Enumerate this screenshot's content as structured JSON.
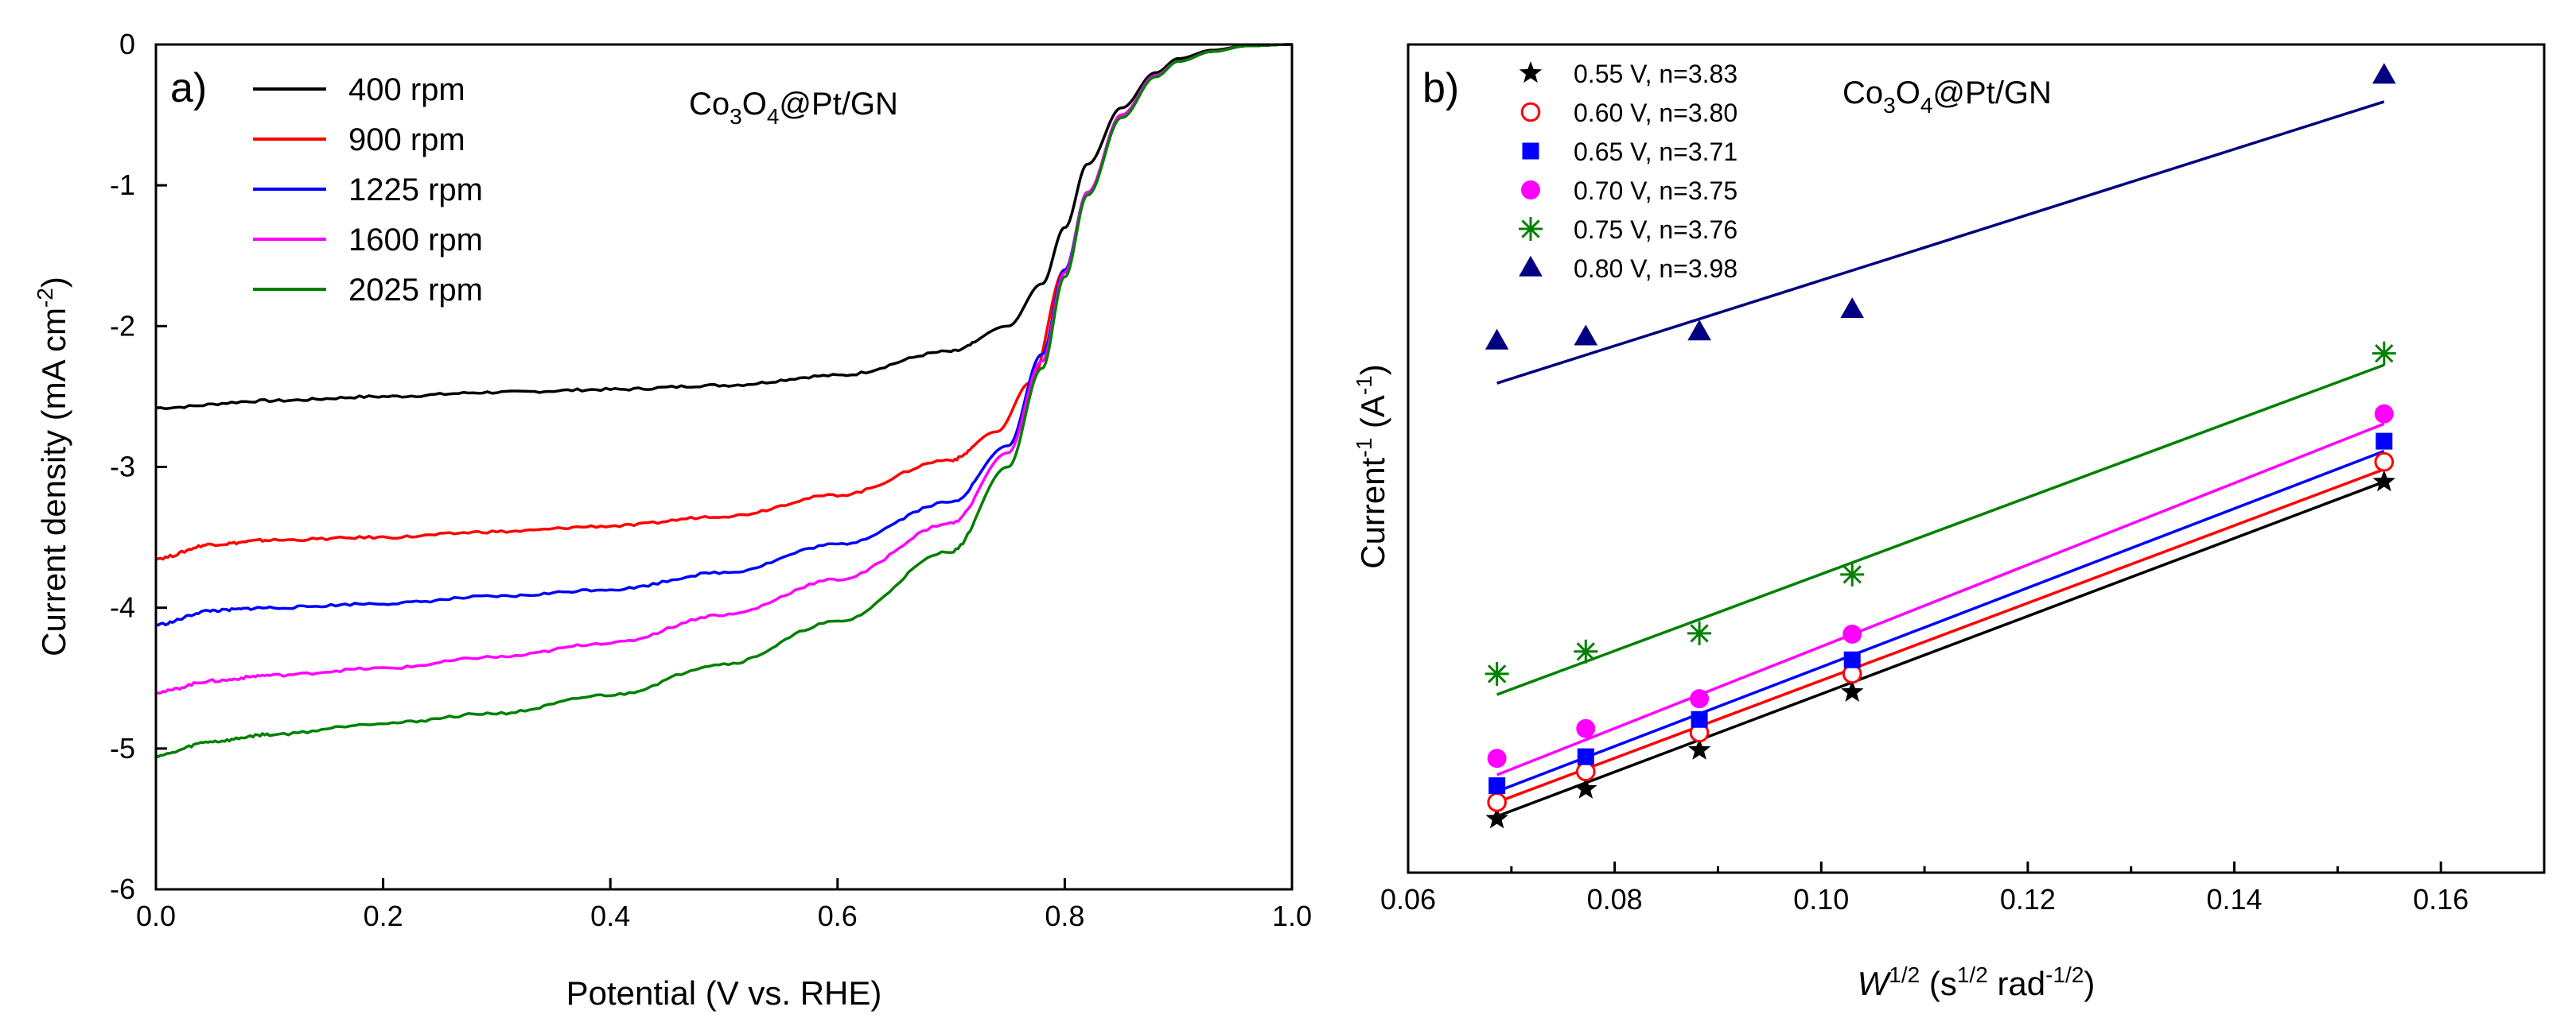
{
  "chart_data": [
    {
      "panel": "a)",
      "type": "line",
      "annotation": {
        "main": "Co",
        "sub1": "3",
        "mid": "O",
        "sub2": "4",
        "tail": "@Pt/GN"
      },
      "xlabel": "Potential (V vs. RHE)",
      "ylabel": {
        "main": "Current density (mA cm",
        "sup": "-2",
        "end": ")"
      },
      "xlim": [
        0.0,
        1.0
      ],
      "ylim": [
        -6,
        0
      ],
      "xticks": [
        "0.0",
        "0.2",
        "0.4",
        "0.6",
        "0.8",
        "1.0"
      ],
      "yticks": [
        "0",
        "-1",
        "-2",
        "-3",
        "-4",
        "-5",
        "-6"
      ],
      "legend_position": "top-left",
      "series": [
        {
          "name": "400 rpm",
          "color": "#000000",
          "x": [
            0.0,
            0.1,
            0.2,
            0.3,
            0.4,
            0.5,
            0.6,
            0.7,
            0.75,
            0.78,
            0.8,
            0.82,
            0.85,
            0.88,
            0.9,
            0.93,
            0.96,
            1.0
          ],
          "y": [
            -2.58,
            -2.53,
            -2.5,
            -2.47,
            -2.45,
            -2.42,
            -2.35,
            -2.18,
            -2.0,
            -1.7,
            -1.3,
            -0.85,
            -0.45,
            -0.2,
            -0.1,
            -0.04,
            -0.01,
            0.0
          ]
        },
        {
          "name": "900 rpm",
          "color": "#ff0000",
          "x": [
            0.0,
            0.05,
            0.1,
            0.2,
            0.3,
            0.4,
            0.5,
            0.6,
            0.7,
            0.74,
            0.77,
            0.8,
            0.82,
            0.85,
            0.88,
            0.9,
            0.93,
            0.96,
            1.0
          ],
          "y": [
            -3.65,
            -3.55,
            -3.52,
            -3.5,
            -3.46,
            -3.42,
            -3.35,
            -3.2,
            -2.95,
            -2.75,
            -2.4,
            -1.6,
            -1.05,
            -0.5,
            -0.22,
            -0.12,
            -0.05,
            -0.01,
            0.0
          ]
        },
        {
          "name": "1225 rpm",
          "color": "#0000ff",
          "x": [
            0.0,
            0.05,
            0.1,
            0.2,
            0.3,
            0.4,
            0.5,
            0.6,
            0.7,
            0.75,
            0.78,
            0.8,
            0.82,
            0.85,
            0.88,
            0.9,
            0.93,
            0.96,
            1.0
          ],
          "y": [
            -4.12,
            -4.02,
            -4.0,
            -3.97,
            -3.92,
            -3.87,
            -3.75,
            -3.55,
            -3.25,
            -2.85,
            -2.2,
            -1.6,
            -1.05,
            -0.5,
            -0.22,
            -0.12,
            -0.05,
            -0.01,
            0.0
          ]
        },
        {
          "name": "1600 rpm",
          "color": "#ff00ff",
          "x": [
            0.0,
            0.05,
            0.1,
            0.2,
            0.3,
            0.4,
            0.5,
            0.6,
            0.7,
            0.75,
            0.78,
            0.8,
            0.82,
            0.85,
            0.88,
            0.9,
            0.93,
            0.96,
            1.0
          ],
          "y": [
            -4.6,
            -4.52,
            -4.48,
            -4.43,
            -4.35,
            -4.25,
            -4.05,
            -3.8,
            -3.4,
            -2.9,
            -2.25,
            -1.62,
            -1.05,
            -0.5,
            -0.22,
            -0.12,
            -0.05,
            -0.01,
            0.0
          ]
        },
        {
          "name": "2025 rpm",
          "color": "#008000",
          "x": [
            0.0,
            0.05,
            0.1,
            0.2,
            0.3,
            0.4,
            0.5,
            0.6,
            0.7,
            0.75,
            0.78,
            0.8,
            0.82,
            0.85,
            0.88,
            0.9,
            0.93,
            0.96,
            1.0
          ],
          "y": [
            -5.05,
            -4.95,
            -4.9,
            -4.82,
            -4.75,
            -4.62,
            -4.4,
            -4.1,
            -3.6,
            -3.0,
            -2.3,
            -1.65,
            -1.07,
            -0.52,
            -0.23,
            -0.12,
            -0.05,
            -0.01,
            0.0
          ]
        }
      ]
    },
    {
      "panel": "b)",
      "type": "scatter",
      "annotation": {
        "main": "Co",
        "sub1": "3",
        "mid": "O",
        "sub2": "4",
        "tail": "@Pt/GN"
      },
      "xlabel": {
        "w": "W",
        "wsup": "1/2",
        "open": " (s",
        "s_sup": "1/2",
        "mid": " rad",
        "r_sup": "-1/2",
        "close": ")"
      },
      "ylabel": {
        "main": "Current",
        "sup": "-1",
        "end": " (A",
        "sup2": "-1",
        "close": ")"
      },
      "xlim": [
        0.06,
        0.17
      ],
      "ylim": [
        0,
        1
      ],
      "xticks": [
        "0.06",
        "0.08",
        "0.10",
        "0.12",
        "0.14",
        "0.16"
      ],
      "yticks_visible": false,
      "legend_position": "top-left",
      "x": [
        0.0686,
        0.0772,
        0.0882,
        0.103,
        0.1545
      ],
      "series": [
        {
          "name": "0.55 V, n=3.83",
          "color": "#000000",
          "marker": "star",
          "values": [
            0.065,
            0.101,
            0.148,
            0.218,
            0.472
          ],
          "fit": [
            0.068,
            0.472
          ]
        },
        {
          "name": "0.60 V, n=3.80",
          "color": "#ff0000",
          "marker": "circle-open",
          "values": [
            0.085,
            0.122,
            0.169,
            0.24,
            0.496
          ],
          "fit": [
            0.085,
            0.487
          ]
        },
        {
          "name": "0.65 V, n=3.71",
          "color": "#0000ff",
          "marker": "square",
          "values": [
            0.105,
            0.14,
            0.185,
            0.257,
            0.521
          ],
          "fit": [
            0.098,
            0.509
          ]
        },
        {
          "name": "0.70 V, n=3.75",
          "color": "#ff00ff",
          "marker": "circle",
          "values": [
            0.138,
            0.174,
            0.21,
            0.288,
            0.554
          ],
          "fit": [
            0.118,
            0.542
          ]
        },
        {
          "name": "0.75 V, n=3.76",
          "color": "#008000",
          "marker": "asterisk",
          "values": [
            0.24,
            0.267,
            0.289,
            0.36,
            0.627
          ],
          "fit": [
            0.215,
            0.613
          ]
        },
        {
          "name": "0.80 V, n=3.98",
          "color": "#000080",
          "marker": "triangle",
          "values": [
            0.642,
            0.647,
            0.653,
            0.68,
            0.963
          ],
          "fit": [
            0.591,
            0.931
          ]
        }
      ]
    }
  ]
}
